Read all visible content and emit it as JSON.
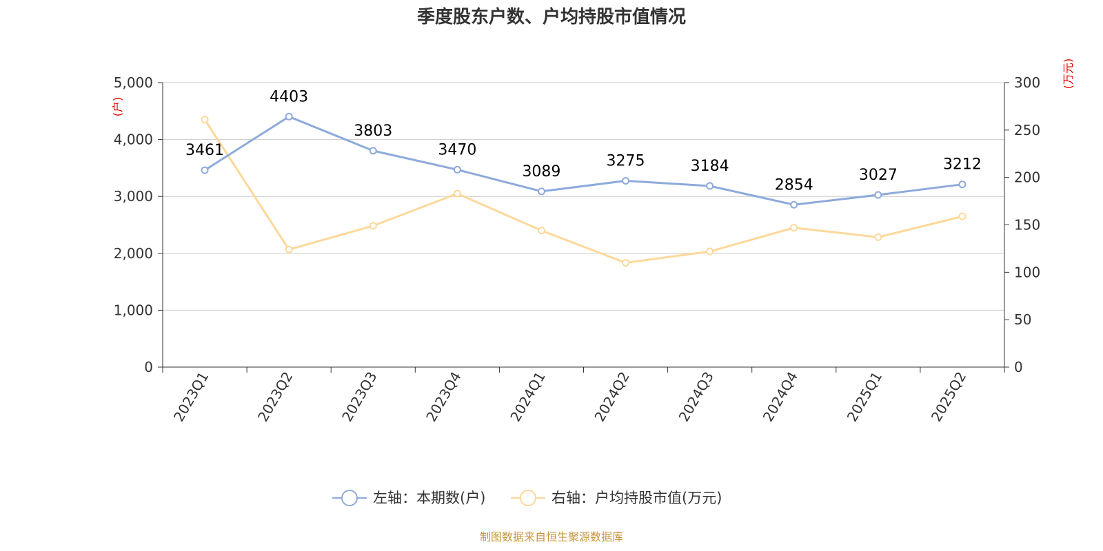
{
  "chart_data": {
    "type": "line",
    "title": "季度股东户数、户均持股市值情况",
    "categories": [
      "2023Q1",
      "2023Q2",
      "2023Q3",
      "2023Q4",
      "2024Q1",
      "2024Q2",
      "2024Q3",
      "2024Q4",
      "2025Q1",
      "2025Q2"
    ],
    "left_axis": {
      "unit": "(户)",
      "ylim": [
        0,
        5000
      ],
      "ticks": [
        "0",
        "1,000",
        "2,000",
        "3,000",
        "4,000",
        "5,000"
      ],
      "tick_values": [
        0,
        1000,
        2000,
        3000,
        4000,
        5000
      ]
    },
    "right_axis": {
      "unit": "(万元)",
      "ylim": [
        0,
        300
      ],
      "ticks": [
        "0",
        "50",
        "100",
        "150",
        "200",
        "250",
        "300"
      ],
      "tick_values": [
        0,
        50,
        100,
        150,
        200,
        250,
        300
      ]
    },
    "series": [
      {
        "name": "左轴：本期数(户)",
        "axis": "left",
        "color": "#8eaadb",
        "values": [
          3461,
          4403,
          3803,
          3470,
          3089,
          3275,
          3184,
          2854,
          3027,
          3212
        ],
        "labels": [
          "3461",
          "4403",
          "3803",
          "3470",
          "3089",
          "3275",
          "3184",
          "2854",
          "3027",
          "3212"
        ]
      },
      {
        "name": "右轴：户均持股市值(万元)",
        "axis": "right",
        "color": "#fdd89a",
        "values": [
          261,
          124,
          149,
          183,
          144,
          110,
          122,
          147,
          137,
          159
        ]
      }
    ],
    "grid": true,
    "legend_position": "bottom-center",
    "source": "制图数据来自恒生聚源数据库"
  }
}
